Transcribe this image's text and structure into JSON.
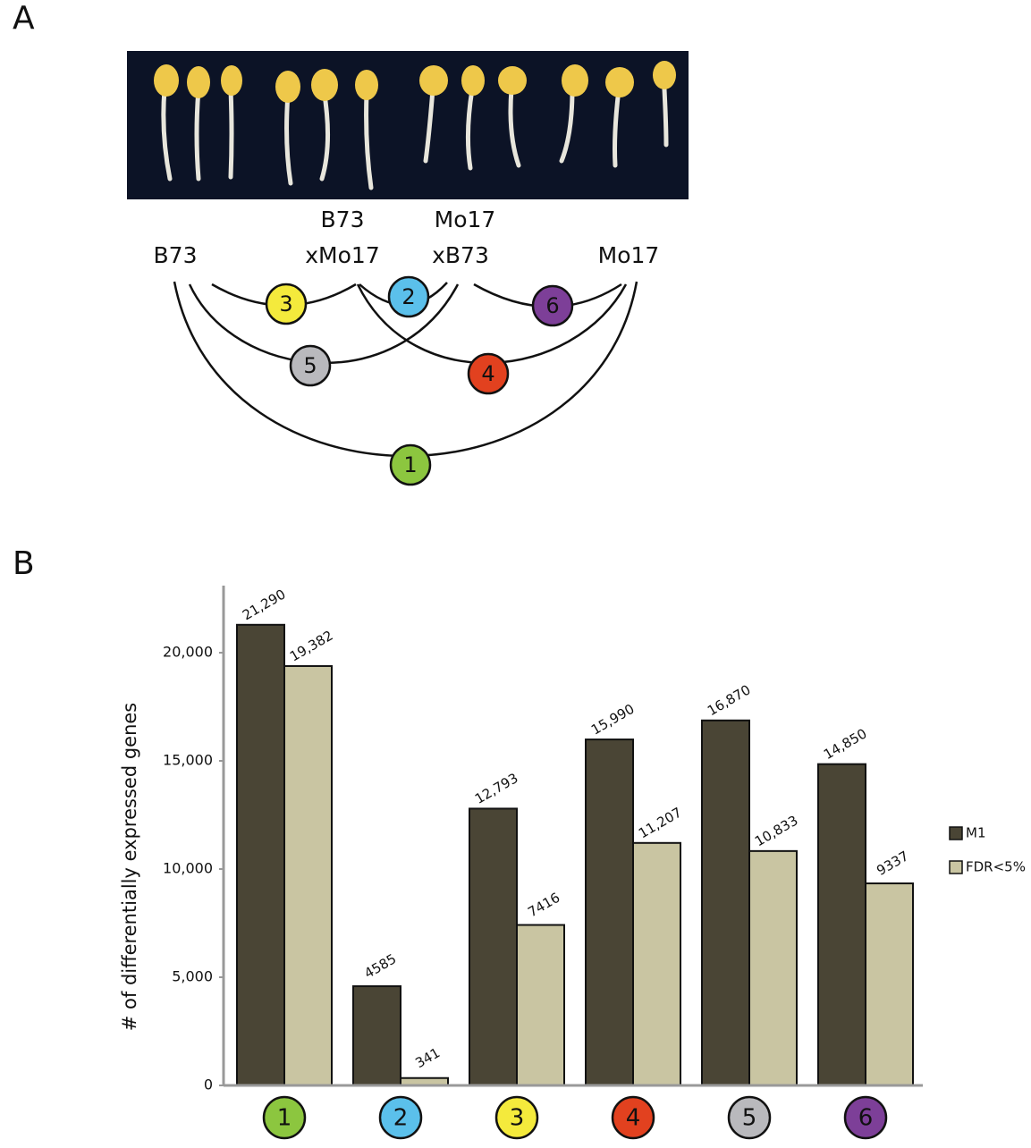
{
  "panel_labels": [
    "A",
    "B"
  ],
  "panel_a": {
    "genotype_labels": [
      "B73",
      "B73",
      "xMo17",
      "Mo17",
      "xB73",
      "Mo17"
    ]
  },
  "chart_data": {
    "type": "bar",
    "y_label": "# of differentially expressed genes",
    "categories": [
      "1",
      "2",
      "3",
      "4",
      "5",
      "6"
    ],
    "category_colors": [
      "#8cc63f",
      "#5bc0eb",
      "#f4ea3c",
      "#e2411f",
      "#b9b9bd",
      "#7d3f98"
    ],
    "series": [
      {
        "name": "M1",
        "color": "#4a4535",
        "values": [
          21290,
          4585,
          12793,
          15990,
          16870,
          14850
        ],
        "value_labels": [
          "21,290",
          "4585",
          "12,793",
          "15,990",
          "16,870",
          "14,850"
        ]
      },
      {
        "name": "FDR<5%",
        "color": "#c9c5a2",
        "values": [
          19382,
          341,
          7416,
          11207,
          10833,
          9337
        ],
        "value_labels": [
          "19,382",
          "341",
          "7416",
          "11,207",
          "10,833",
          "9337"
        ]
      }
    ],
    "ylim": [
      0,
      23100
    ],
    "yticks": [
      0,
      {
        "value": 5000,
        "label": "5,000"
      },
      {
        "value": 10000,
        "label": "10,000"
      },
      {
        "value": 15000,
        "label": "15,000"
      },
      {
        "value": 20000,
        "label": "20,000"
      }
    ],
    "legend": "right"
  }
}
